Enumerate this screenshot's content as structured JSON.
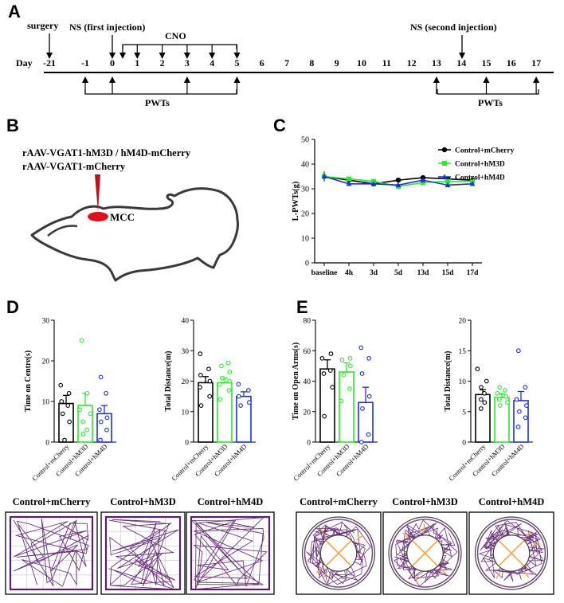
{
  "panel_labels": {
    "a": "A",
    "b": "B",
    "c": "C",
    "d": "D",
    "e": "E"
  },
  "timeline": {
    "day_label": "Day",
    "days": [
      "-21",
      "-1",
      "0",
      "1",
      "2",
      "3",
      "4",
      "5",
      "6",
      "7",
      "8",
      "9",
      "10",
      "11",
      "12",
      "13",
      "14",
      "15",
      "16",
      "17"
    ],
    "surgery_label": "surgery",
    "first_injection_label": "NS (first injection)",
    "second_injection_label": "NS (second injection)",
    "cno_label": "CNO",
    "pwts_label_1": "PWTs",
    "pwts_label_2": "PWTs"
  },
  "panel_b": {
    "virus_line_1": "rAAV-VGAT1-hM3D / hM4D-mCherry",
    "virus_line_2": "rAAV-VGAT1-mCherry",
    "region_label": "MCC"
  },
  "colors": {
    "black": "#000000",
    "green": "#22ee22",
    "blue": "#1c2fe0",
    "purple": "#5b1e6e",
    "orange": "#f4a340",
    "red": "#e0101a"
  },
  "chart_data": [
    {
      "id": "c_line",
      "type": "line",
      "ylabel": "L-PWTs(g)",
      "categories": [
        "baseline",
        "4h",
        "3d",
        "5d",
        "13d",
        "15d",
        "17d"
      ],
      "ylim": [
        0,
        50
      ],
      "yticks": [
        "0",
        "10",
        "20",
        "30",
        "40",
        "50"
      ],
      "legend_position": "top-right",
      "series": [
        {
          "name": "Control+mCherry",
          "color": "#000000",
          "marker": "circle",
          "values": [
            35,
            33.5,
            32,
            33.5,
            34.5,
            34,
            33.5
          ]
        },
        {
          "name": "Control+hM3D",
          "color": "#22ee22",
          "marker": "square",
          "values": [
            35,
            34,
            33,
            31,
            32.5,
            33,
            33
          ]
        },
        {
          "name": "Control+hM4D",
          "color": "#1c2fe0",
          "marker": "triangle",
          "values": [
            35,
            32,
            32,
            31.5,
            33.5,
            31.5,
            32
          ]
        }
      ]
    },
    {
      "id": "d1",
      "type": "bar",
      "ylabel": "Time on Centre(s)",
      "ylim": [
        0,
        30
      ],
      "yticks": [
        "0",
        "10",
        "20",
        "30"
      ],
      "categories": [
        "Control+mCherry",
        "Control+hM3D",
        "Control+hM4D"
      ],
      "values": [
        9.5,
        9,
        7
      ],
      "sem": [
        2,
        3,
        2
      ],
      "points": [
        [
          0.5,
          5,
          7,
          9,
          10,
          12,
          14
        ],
        [
          2,
          3,
          5,
          7,
          8,
          12,
          25
        ],
        [
          0.5,
          3,
          5,
          6,
          8,
          12,
          16
        ]
      ]
    },
    {
      "id": "d2",
      "type": "bar",
      "ylabel": "Total Distance(m)",
      "ylim": [
        0,
        40
      ],
      "yticks": [
        "0",
        "10",
        "20",
        "30",
        "40"
      ],
      "categories": [
        "Control+mCherry",
        "Control+hM3D",
        "Control+hM4D"
      ],
      "values": [
        19.5,
        19.5,
        15
      ],
      "sem": [
        2,
        1.5,
        1.5
      ],
      "points": [
        [
          12,
          15,
          18,
          20,
          22,
          24,
          29
        ],
        [
          14,
          17,
          19,
          20,
          21,
          23,
          25,
          26
        ],
        [
          12,
          13,
          15,
          17,
          19
        ]
      ]
    },
    {
      "id": "e1",
      "type": "bar",
      "ylabel": "Time on Open Arms(s)",
      "ylim": [
        0,
        80
      ],
      "yticks": [
        "0",
        "20",
        "40",
        "60",
        "80"
      ],
      "categories": [
        "Control+mCherry",
        "Control+hM3D",
        "Control+hM4D"
      ],
      "values": [
        48,
        46,
        26
      ],
      "sem": [
        6,
        6,
        10
      ],
      "points": [
        [
          17,
          36,
          45,
          47,
          55,
          58
        ],
        [
          27,
          35,
          44,
          50,
          54,
          55
        ],
        [
          0,
          5,
          22,
          30,
          45,
          55,
          62
        ]
      ]
    },
    {
      "id": "e2",
      "type": "bar",
      "ylabel": "Total Distance(m)",
      "ylim": [
        0,
        20
      ],
      "yticks": [
        "0",
        "5",
        "10",
        "15",
        "20"
      ],
      "categories": [
        "Control+mCherry",
        "Control+hM3D",
        "Control+hM4D"
      ],
      "values": [
        7.8,
        7.3,
        6.8
      ],
      "sem": [
        0.8,
        0.6,
        1.5
      ],
      "points": [
        [
          5.5,
          6.5,
          7,
          8,
          9,
          10,
          12
        ],
        [
          6,
          6.5,
          7,
          7.5,
          8,
          8.5,
          9
        ],
        [
          2.5,
          4,
          5,
          6,
          7,
          9,
          15
        ]
      ]
    }
  ],
  "track_labels": {
    "d": [
      "Control+mCherry",
      "Control+hM3D",
      "Control+hM4D"
    ],
    "e": [
      "Control+mCherry",
      "Control+hM3D",
      "Control+hM4D"
    ]
  }
}
